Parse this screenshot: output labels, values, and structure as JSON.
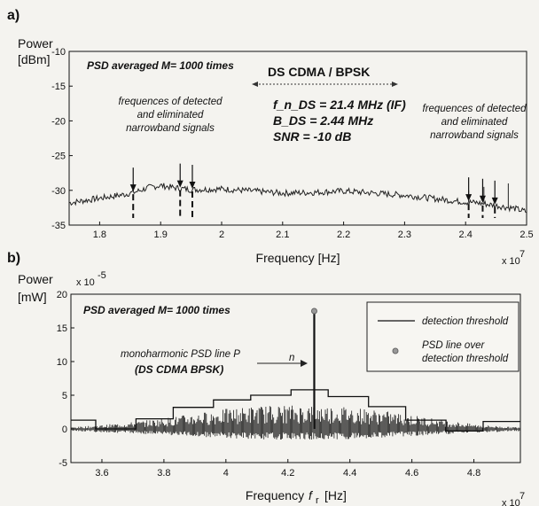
{
  "chart_data": [
    {
      "panel_label": "a)",
      "type": "line",
      "ylabel_line1": "Power",
      "ylabel_line2": "[dBm]",
      "xlabel": "Frequency [Hz]",
      "x_exponent": "x 10",
      "x_exponent_power": "7",
      "xlim": [
        1.75,
        2.5
      ],
      "ylim": [
        -35,
        -10
      ],
      "xticks": [
        1.8,
        1.9,
        2.0,
        2.1,
        2.2,
        2.3,
        2.4,
        2.5
      ],
      "xtick_labels": [
        "1.8",
        "1.9",
        "2",
        "2.1",
        "2.2",
        "2.3",
        "2.4",
        "2.5"
      ],
      "yticks": [
        -35,
        -30,
        -25,
        -20,
        -15,
        -10
      ],
      "ytick_labels": [
        "-35",
        "-30",
        "-25",
        "-20",
        "-15",
        "-10"
      ],
      "psd_label": "PSD averaged M= 1000 times",
      "signal_title": "DS CDMA / BPSK",
      "signal_params": [
        "f_n_DS = 21.4 MHz (IF)",
        "B_DS = 2.44 MHz",
        "SNR = -10 dB"
      ],
      "left_annotation": [
        "frequences of detected",
        "and eliminated",
        "narrowband signals"
      ],
      "right_annotation": [
        "frequences of detected",
        "and eliminated",
        "narrowband signals"
      ],
      "eliminated_frequencies": [
        1.855,
        1.932,
        1.952,
        2.405,
        2.428,
        2.448
      ],
      "series": {
        "x": [
          1.75,
          1.78,
          1.81,
          1.84,
          1.86,
          1.88,
          1.9,
          1.92,
          1.95,
          2.0,
          2.05,
          2.1,
          2.15,
          2.2,
          2.25,
          2.3,
          2.35,
          2.39,
          2.42,
          2.45,
          2.48,
          2.5
        ],
        "y": [
          -31.8,
          -31.4,
          -31.0,
          -30.6,
          -30.2,
          -29.6,
          -29.3,
          -29.6,
          -29.9,
          -29.8,
          -30.1,
          -30.4,
          -30.3,
          -30.1,
          -30.4,
          -30.7,
          -31.2,
          -31.6,
          -31.8,
          -32.2,
          -32.6,
          -33.1
        ]
      },
      "spikes": [
        {
          "x": 2.405,
          "y": -30.0
        },
        {
          "x": 2.43,
          "y": -29.5
        },
        {
          "x": 2.47,
          "y": -29.0
        }
      ]
    },
    {
      "panel_label": "b)",
      "type": "line",
      "ylabel_line1": "Power",
      "ylabel_line2": "[mW]",
      "y_exponent": "x 10",
      "y_exponent_power": "-5",
      "xlabel_main": "Frequency",
      "xlabel_var": "f",
      "xlabel_sub": "r",
      "xlabel_unit": "[Hz]",
      "x_exponent": "x 10",
      "x_exponent_power": "7",
      "xlim": [
        3.5,
        4.95
      ],
      "ylim": [
        -5,
        20
      ],
      "xticks": [
        3.6,
        3.8,
        4.0,
        4.2,
        4.4,
        4.6,
        4.8
      ],
      "xtick_labels": [
        "3.6",
        "3.8",
        "4",
        "4.2",
        "4.4",
        "4.6",
        "4.8"
      ],
      "yticks": [
        -5,
        0,
        5,
        10,
        15,
        20
      ],
      "ytick_labels": [
        "-5",
        "0",
        "5",
        "10",
        "15",
        "20"
      ],
      "psd_label": "PSD averaged M= 1000 times",
      "annotation_line1": "monoharmonic PSD line P",
      "annotation_sub": "n",
      "annotation_line2": "(DS CDMA BPSK)",
      "legend": {
        "placement": "top-right",
        "entries": [
          "detection threshold",
          "PSD line over",
          "detection threshold"
        ]
      },
      "threshold": {
        "x": [
          3.5,
          3.58,
          3.58,
          3.71,
          3.71,
          3.83,
          3.83,
          3.96,
          3.96,
          4.08,
          4.08,
          4.21,
          4.21,
          4.33,
          4.33,
          4.46,
          4.46,
          4.58,
          4.58,
          4.71,
          4.71,
          4.83,
          4.83,
          4.95
        ],
        "y": [
          1.3,
          1.3,
          0.0,
          0.0,
          1.5,
          1.5,
          3.2,
          3.2,
          4.3,
          4.3,
          5.0,
          5.0,
          5.8,
          5.8,
          4.8,
          4.8,
          3.3,
          3.3,
          1.3,
          1.3,
          -0.3,
          -0.3,
          1.1,
          1.1
        ]
      },
      "noise_envelope": {
        "x": [
          3.5,
          3.6,
          3.7,
          3.8,
          3.9,
          4.0,
          4.1,
          4.2,
          4.3,
          4.4,
          4.5,
          4.6,
          4.7,
          4.8,
          4.9,
          4.95
        ],
        "y": [
          0.2,
          0.5,
          0.9,
          1.4,
          2.0,
          2.6,
          3.0,
          3.1,
          3.1,
          2.9,
          2.4,
          1.8,
          1.2,
          0.6,
          0.3,
          0.2
        ]
      },
      "psd_line": {
        "x": 4.285,
        "y": 17.5
      }
    }
  ]
}
